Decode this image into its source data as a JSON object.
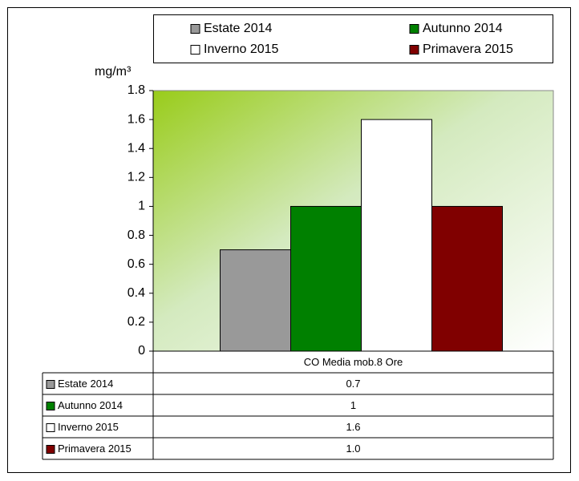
{
  "chart_data": {
    "type": "bar",
    "y_label": "mg/m³",
    "categories": [
      "CO Media mob.8 Ore"
    ],
    "series": [
      {
        "name": "Estate 2014",
        "color": "#999999",
        "values": [
          0.7
        ],
        "value_labels": [
          "0.7"
        ]
      },
      {
        "name": "Autunno 2014",
        "color": "#008000",
        "values": [
          1
        ],
        "value_labels": [
          "1"
        ]
      },
      {
        "name": "Inverno 2015",
        "color": "#ffffff",
        "values": [
          1.6
        ],
        "value_labels": [
          "1.6"
        ]
      },
      {
        "name": "Primavera 2015",
        "color": "#800000",
        "values": [
          1
        ],
        "value_labels": [
          "1.0"
        ]
      }
    ],
    "ylim": [
      0,
      1.8
    ],
    "yticks": [
      0,
      0.2,
      0.4,
      0.6,
      0.8,
      1,
      1.2,
      1.4,
      1.6,
      1.8
    ],
    "legend": "top",
    "data_table": true
  }
}
